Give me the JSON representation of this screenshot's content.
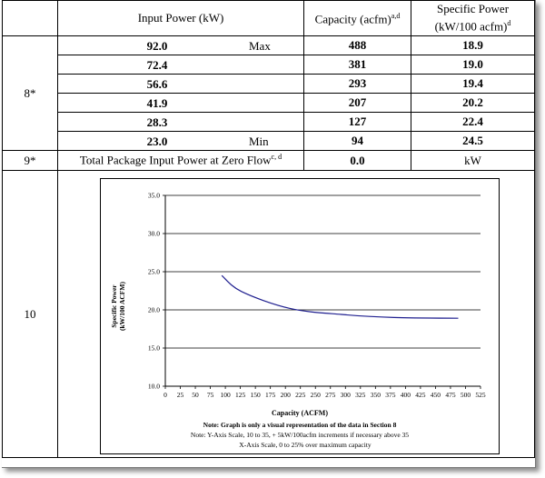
{
  "header": {
    "col_input": "Input Power (kW)",
    "col_capacity": "Capacity (acfm)",
    "col_capacity_sup": "a,d",
    "col_specific_line1": "Specific Power",
    "col_specific_line2": "(kW/100 acfm)",
    "col_specific_sup": "d"
  },
  "rows8": {
    "label": "8*",
    "items": [
      {
        "power": "92.0",
        "tag": "Max",
        "capacity": "488",
        "specific": "18.9"
      },
      {
        "power": "72.4",
        "tag": "",
        "capacity": "381",
        "specific": "19.0"
      },
      {
        "power": "56.6",
        "tag": "",
        "capacity": "293",
        "specific": "19.4"
      },
      {
        "power": "41.9",
        "tag": "",
        "capacity": "207",
        "specific": "20.2"
      },
      {
        "power": "28.3",
        "tag": "",
        "capacity": "127",
        "specific": "22.4"
      },
      {
        "power": "23.0",
        "tag": "Min",
        "capacity": "94",
        "specific": "24.5"
      }
    ]
  },
  "row9": {
    "label": "9*",
    "text": "Total Package Input Power at Zero Flow",
    "sup": "c, d",
    "value": "0.0",
    "unit": "kW"
  },
  "row10": {
    "label": "10"
  },
  "chart_data": {
    "type": "line",
    "xlabel": "Capacity (ACFM)",
    "ylabel_line1": "Specific Power",
    "ylabel_line2": "(kW/100 ACFM)",
    "xlim": [
      0,
      525
    ],
    "ylim": [
      10.0,
      35.0
    ],
    "x_ticks": [
      "0",
      "25",
      "50",
      "75",
      "100",
      "125",
      "150",
      "175",
      "200",
      "225",
      "250",
      "275",
      "300",
      "325",
      "350",
      "375",
      "400",
      "425",
      "450",
      "475",
      "500",
      "525"
    ],
    "y_ticks": [
      "10.0",
      "15.0",
      "20.0",
      "25.0",
      "30.0",
      "35.0"
    ],
    "grid": "horizontal",
    "line_color": "#1f1f8f",
    "series": [
      {
        "x": [
          94,
          127,
          207,
          293,
          381,
          488
        ],
        "y": [
          24.5,
          22.4,
          20.2,
          19.4,
          19.0,
          18.9
        ]
      }
    ],
    "notes": [
      "Note:  Graph is only a visual representation of the data in Section 8",
      "Note:  Y-Axis Scale, 10 to 35, + 5kW/100acfm increments if necessary above 35",
      "X-Axis Scale, 0 to 25% over maximum capacity"
    ]
  }
}
